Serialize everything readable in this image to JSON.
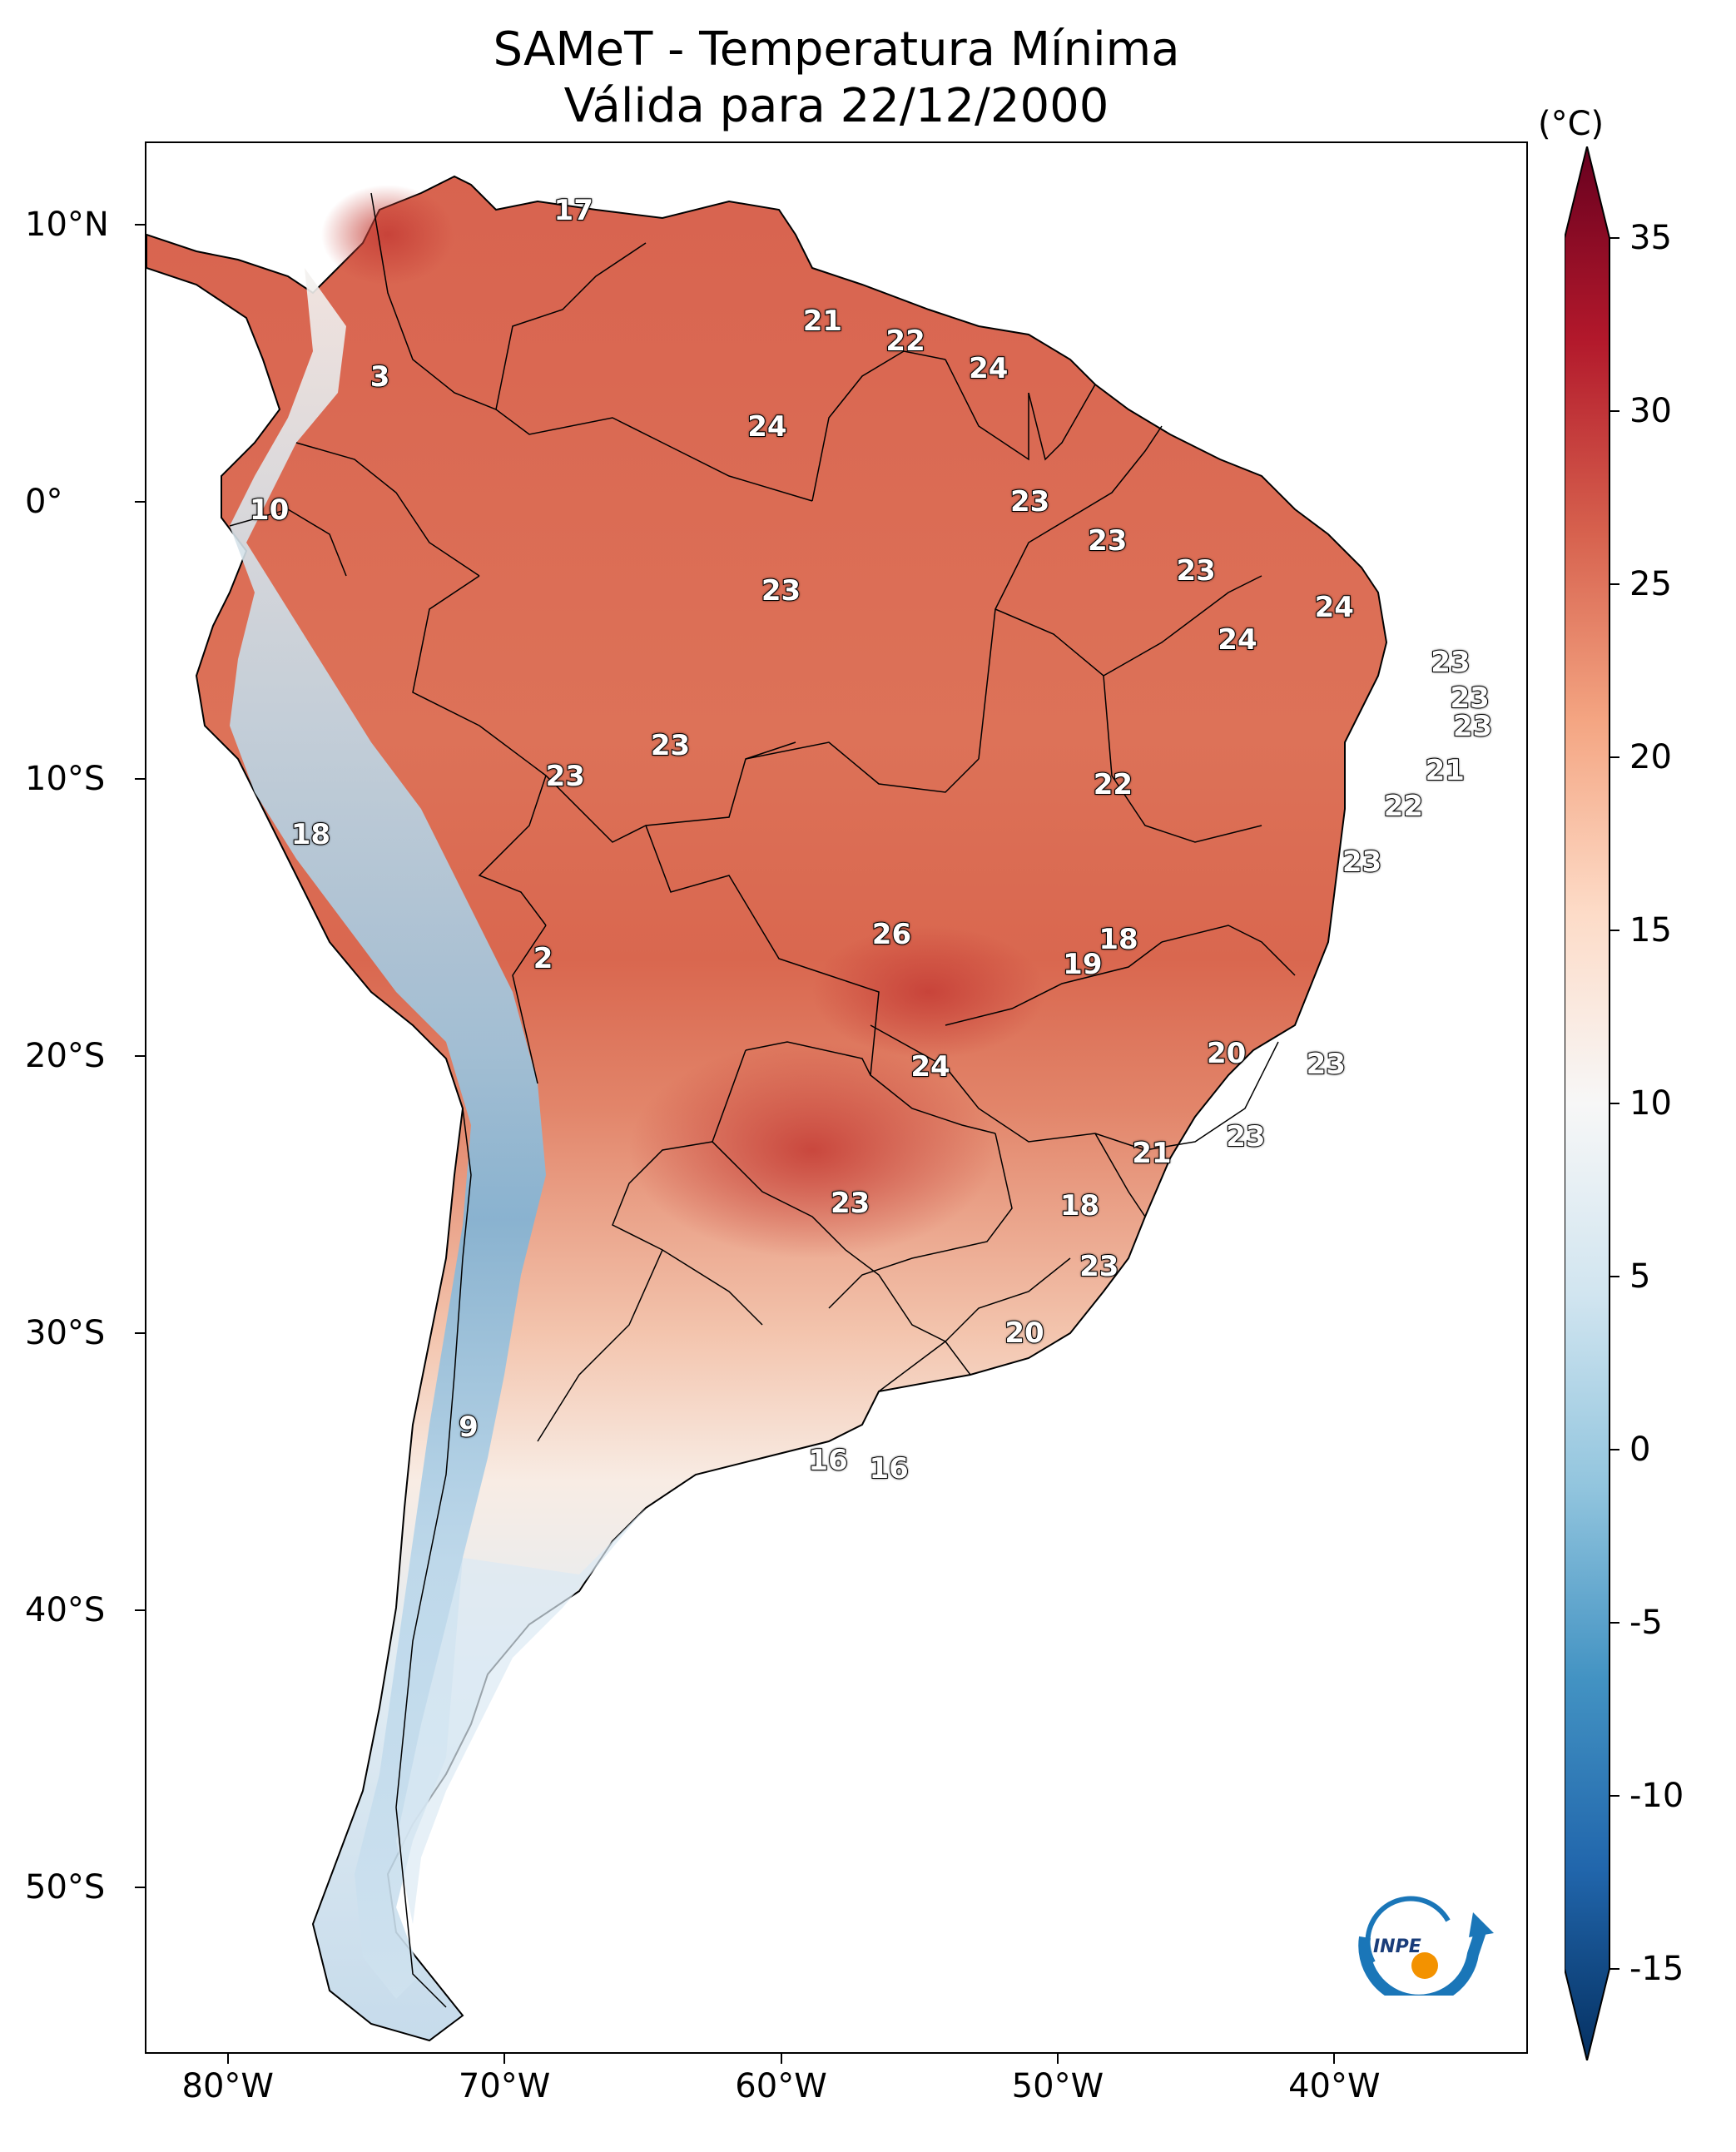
{
  "title": {
    "line1": "SAMeT - Temperatura Mínima",
    "line2": "Válida para 22/12/2000"
  },
  "colorbar": {
    "unit": "(°C)",
    "ticks": [
      "35",
      "30",
      "25",
      "20",
      "15",
      "10",
      "5",
      "0",
      "-5",
      "-10",
      "-15"
    ],
    "min": -15,
    "max": 35,
    "colors": [
      "#053061",
      "#2166ac",
      "#4393c3",
      "#92c5de",
      "#d1e5f0",
      "#f7f7f7",
      "#fddbc7",
      "#f4a582",
      "#d6604d",
      "#b2182b",
      "#67001f"
    ]
  },
  "axes": {
    "lat_labels": [
      "10°N",
      "0°",
      "10°S",
      "20°S",
      "30°S",
      "40°S",
      "50°S"
    ],
    "lon_labels": [
      "80°W",
      "70°W",
      "60°W",
      "50°W",
      "40°W"
    ]
  },
  "map_values": [
    {
      "value": "17",
      "lon": -67.5,
      "lat": 10.5
    },
    {
      "value": "3",
      "lon": -74.5,
      "lat": 4.5
    },
    {
      "value": "21",
      "lon": -58.5,
      "lat": 6.5
    },
    {
      "value": "22",
      "lon": -55.5,
      "lat": 5.8
    },
    {
      "value": "24",
      "lon": -52.5,
      "lat": 4.8
    },
    {
      "value": "24",
      "lon": -60.5,
      "lat": 2.7
    },
    {
      "value": "10",
      "lon": -78.5,
      "lat": -0.3
    },
    {
      "value": "23",
      "lon": -51.0,
      "lat": 0.0
    },
    {
      "value": "23",
      "lon": -48.2,
      "lat": -1.4
    },
    {
      "value": "23",
      "lon": -45.0,
      "lat": -2.5
    },
    {
      "value": "24",
      "lon": -40.0,
      "lat": -3.8
    },
    {
      "value": "23",
      "lon": -60.0,
      "lat": -3.2
    },
    {
      "value": "24",
      "lon": -43.5,
      "lat": -5.0
    },
    {
      "value": "23",
      "lon": -35.8,
      "lat": -5.8
    },
    {
      "value": "23",
      "lon": -35.1,
      "lat": -7.1
    },
    {
      "value": "23",
      "lon": -35.0,
      "lat": -8.1
    },
    {
      "value": "23",
      "lon": -64.0,
      "lat": -8.8
    },
    {
      "value": "21",
      "lon": -36.0,
      "lat": -9.7
    },
    {
      "value": "22",
      "lon": -48.0,
      "lat": -10.2
    },
    {
      "value": "23",
      "lon": -67.8,
      "lat": -9.9
    },
    {
      "value": "22",
      "lon": -37.5,
      "lat": -11.0
    },
    {
      "value": "18",
      "lon": -77.0,
      "lat": -12.0
    },
    {
      "value": "23",
      "lon": -39.0,
      "lat": -13.0
    },
    {
      "value": "26",
      "lon": -56.0,
      "lat": -15.6
    },
    {
      "value": "18",
      "lon": -47.8,
      "lat": -15.8
    },
    {
      "value": "2",
      "lon": -68.6,
      "lat": -16.5
    },
    {
      "value": "19",
      "lon": -49.1,
      "lat": -16.7
    },
    {
      "value": "20",
      "lon": -43.9,
      "lat": -19.9
    },
    {
      "value": "23",
      "lon": -40.3,
      "lat": -20.3
    },
    {
      "value": "24",
      "lon": -54.6,
      "lat": -20.4
    },
    {
      "value": "23",
      "lon": -43.2,
      "lat": -22.9
    },
    {
      "value": "21",
      "lon": -46.6,
      "lat": -23.5
    },
    {
      "value": "23",
      "lon": -57.5,
      "lat": -25.3
    },
    {
      "value": "18",
      "lon": -49.2,
      "lat": -25.4
    },
    {
      "value": "23",
      "lon": -48.5,
      "lat": -27.6
    },
    {
      "value": "20",
      "lon": -51.2,
      "lat": -30.0
    },
    {
      "value": "9",
      "lon": -71.3,
      "lat": -33.4
    },
    {
      "value": "16",
      "lon": -58.3,
      "lat": -34.6
    },
    {
      "value": "16",
      "lon": -56.1,
      "lat": -34.9
    }
  ],
  "logo": {
    "text": "INPE"
  }
}
